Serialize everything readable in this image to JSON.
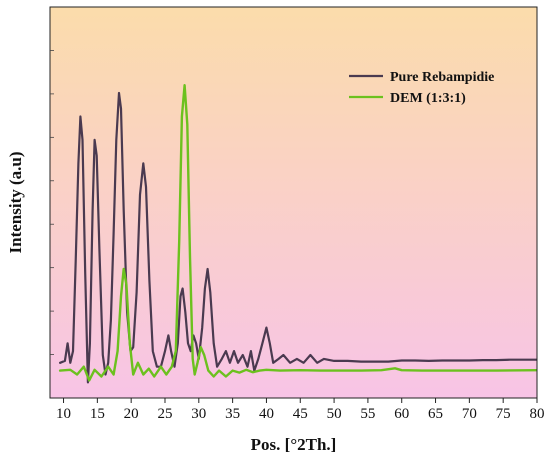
{
  "chart_data": {
    "type": "line",
    "title": "",
    "xlabel": "Pos. [°2Th.]",
    "ylabel": "Intensity (a.u)",
    "xlim": [
      8,
      80
    ],
    "ylim": [
      0,
      100
    ],
    "x_ticks": [
      10,
      15,
      20,
      25,
      30,
      35,
      40,
      45,
      50,
      55,
      60,
      65,
      70,
      75,
      80
    ],
    "y_ticks_labeled": false,
    "grid": false,
    "legend_position": "top-right",
    "background_gradient": [
      "#fbdcab",
      "#f8c4e6"
    ],
    "series": [
      {
        "name": "Pure Rebampidie",
        "color": "#4a3a50",
        "points": [
          [
            9.5,
            9
          ],
          [
            10.2,
            9.5
          ],
          [
            10.6,
            14
          ],
          [
            11.0,
            9
          ],
          [
            11.4,
            12
          ],
          [
            11.8,
            35
          ],
          [
            12.2,
            60
          ],
          [
            12.5,
            72
          ],
          [
            12.8,
            66
          ],
          [
            13.2,
            32
          ],
          [
            13.6,
            4
          ],
          [
            13.9,
            14
          ],
          [
            14.3,
            48
          ],
          [
            14.6,
            66
          ],
          [
            14.9,
            62
          ],
          [
            15.3,
            38
          ],
          [
            15.8,
            11
          ],
          [
            16.2,
            6
          ],
          [
            16.6,
            9
          ],
          [
            17.0,
            20
          ],
          [
            17.4,
            42
          ],
          [
            17.8,
            66
          ],
          [
            18.2,
            78
          ],
          [
            18.5,
            74
          ],
          [
            18.9,
            48
          ],
          [
            19.4,
            22
          ],
          [
            19.9,
            12
          ],
          [
            20.3,
            13
          ],
          [
            20.8,
            27
          ],
          [
            21.3,
            52
          ],
          [
            21.8,
            60
          ],
          [
            22.2,
            54
          ],
          [
            22.7,
            30
          ],
          [
            23.2,
            12
          ],
          [
            23.8,
            8
          ],
          [
            24.4,
            8
          ],
          [
            25.0,
            12
          ],
          [
            25.5,
            16
          ],
          [
            25.9,
            12
          ],
          [
            26.4,
            8
          ],
          [
            26.9,
            14
          ],
          [
            27.3,
            26
          ],
          [
            27.6,
            28
          ],
          [
            28.0,
            22
          ],
          [
            28.4,
            14
          ],
          [
            28.8,
            12
          ],
          [
            29.2,
            16
          ],
          [
            29.6,
            14
          ],
          [
            30.0,
            10
          ],
          [
            30.5,
            18
          ],
          [
            30.9,
            28
          ],
          [
            31.3,
            33
          ],
          [
            31.7,
            27
          ],
          [
            32.2,
            14
          ],
          [
            32.7,
            8
          ],
          [
            33.4,
            10
          ],
          [
            34.0,
            12
          ],
          [
            34.6,
            9
          ],
          [
            35.2,
            12
          ],
          [
            35.8,
            9
          ],
          [
            36.5,
            11
          ],
          [
            37.2,
            8
          ],
          [
            37.7,
            12
          ],
          [
            38.2,
            7
          ],
          [
            38.8,
            10
          ],
          [
            39.4,
            14
          ],
          [
            40.0,
            18
          ],
          [
            40.5,
            14
          ],
          [
            41.0,
            9
          ],
          [
            41.8,
            10
          ],
          [
            42.5,
            11
          ],
          [
            43.5,
            9
          ],
          [
            44.5,
            10
          ],
          [
            45.5,
            9
          ],
          [
            46.5,
            11
          ],
          [
            47.5,
            9
          ],
          [
            48.5,
            10
          ],
          [
            50,
            9.5
          ],
          [
            52,
            9.5
          ],
          [
            54,
            9.3
          ],
          [
            56,
            9.3
          ],
          [
            58,
            9.3
          ],
          [
            60,
            9.6
          ],
          [
            62,
            9.6
          ],
          [
            64,
            9.5
          ],
          [
            66,
            9.6
          ],
          [
            68,
            9.6
          ],
          [
            70,
            9.6
          ],
          [
            72,
            9.7
          ],
          [
            74,
            9.7
          ],
          [
            76,
            9.8
          ],
          [
            78,
            9.8
          ],
          [
            80,
            9.8
          ]
        ]
      },
      {
        "name": "DEM (1:3:1)",
        "color": "#6cc11e",
        "points": [
          [
            9.5,
            7
          ],
          [
            11.0,
            7.2
          ],
          [
            12.0,
            6
          ],
          [
            13.0,
            8
          ],
          [
            13.8,
            4.5
          ],
          [
            14.6,
            7.2
          ],
          [
            15.6,
            5.5
          ],
          [
            16.6,
            8
          ],
          [
            17.4,
            6
          ],
          [
            18.0,
            12
          ],
          [
            18.5,
            26
          ],
          [
            18.9,
            33
          ],
          [
            19.3,
            29
          ],
          [
            19.8,
            14
          ],
          [
            20.3,
            6
          ],
          [
            21.0,
            9
          ],
          [
            21.8,
            6
          ],
          [
            22.6,
            7.5
          ],
          [
            23.4,
            5.5
          ],
          [
            24.4,
            8
          ],
          [
            25.2,
            6
          ],
          [
            26.0,
            8
          ],
          [
            26.6,
            12
          ],
          [
            27.1,
            40
          ],
          [
            27.5,
            72
          ],
          [
            27.9,
            80
          ],
          [
            28.3,
            70
          ],
          [
            28.7,
            36
          ],
          [
            29.1,
            10
          ],
          [
            29.4,
            6
          ],
          [
            29.8,
            9
          ],
          [
            30.3,
            13
          ],
          [
            30.8,
            11
          ],
          [
            31.4,
            7
          ],
          [
            32.2,
            5.5
          ],
          [
            33.0,
            7
          ],
          [
            34.0,
            5.5
          ],
          [
            35.0,
            7
          ],
          [
            36.0,
            6.5
          ],
          [
            37.0,
            7.2
          ],
          [
            38.0,
            6.6
          ],
          [
            39.0,
            7
          ],
          [
            40.0,
            7.2
          ],
          [
            42,
            7
          ],
          [
            45,
            7.1
          ],
          [
            48,
            7
          ],
          [
            51,
            7
          ],
          [
            54,
            7
          ],
          [
            57,
            7.1
          ],
          [
            59,
            7.6
          ],
          [
            60,
            7.1
          ],
          [
            63,
            7
          ],
          [
            66,
            7
          ],
          [
            70,
            7
          ],
          [
            74,
            7
          ],
          [
            80,
            7.1
          ]
        ]
      }
    ]
  }
}
